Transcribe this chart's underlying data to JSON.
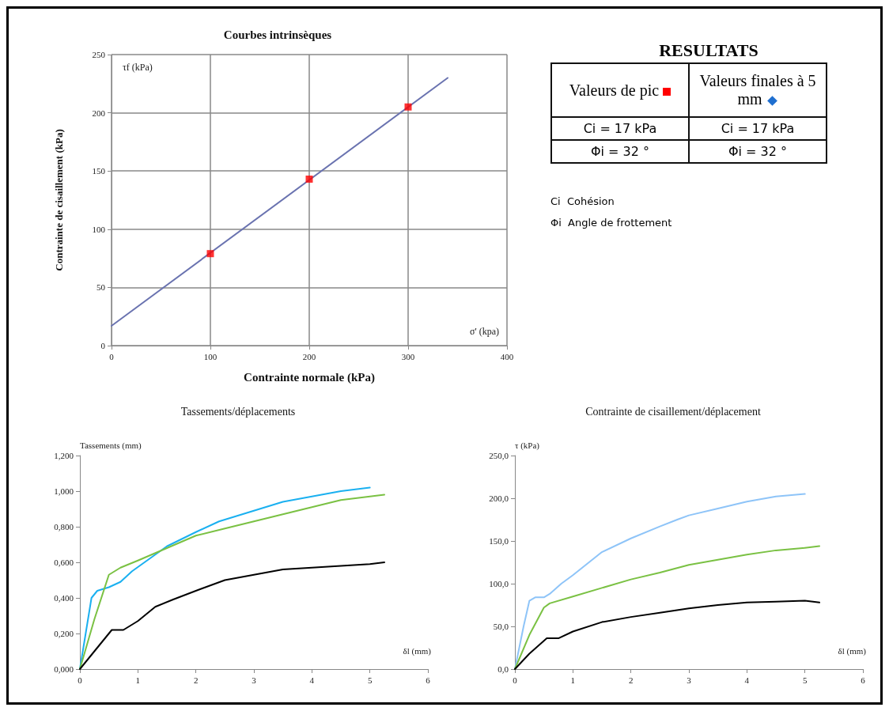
{
  "chart_data": [
    {
      "type": "scatter",
      "title": "Courbes intrinsèques",
      "xlabel": "Contrainte normale (kPa)",
      "ylabel": "Contrainte de cisaillement (kPa)",
      "annotations": [
        "τf (kPa)",
        "σ' (kpa)"
      ],
      "xlim": [
        0,
        400
      ],
      "xticks": [
        0,
        100,
        200,
        300,
        400
      ],
      "ylim": [
        0,
        250
      ],
      "yticks": [
        0,
        50,
        100,
        150,
        200,
        250
      ],
      "grid": true,
      "series": [
        {
          "type": "line",
          "color": "#6a73b0",
          "marker": "none",
          "x": [
            0,
            340
          ],
          "values": [
            17,
            230
          ]
        },
        {
          "type": "scatter",
          "color": "#ff0000",
          "marker": "square",
          "x": [
            100,
            200,
            300
          ],
          "values": [
            79,
            143,
            205
          ]
        }
      ]
    },
    {
      "type": "other",
      "title": "RESULTATS",
      "annotations": [
        "Valeurs de pic",
        "Valeurs finales à 5 mm",
        "Ci = 17 kPa",
        "Ci = 17 kPa",
        "Φi = 32 °",
        "Φi = 32 °",
        "Ci  Cohésion",
        "Φi  Angle de frottement"
      ]
    },
    {
      "type": "line",
      "title": "Tassements/déplacements",
      "xlabel": "δl (mm)",
      "ylabel": "Tassements (mm)",
      "xlim": [
        0,
        6
      ],
      "xticks": [
        0,
        1,
        2,
        3,
        4,
        5,
        6
      ],
      "ylim": [
        0,
        1.2
      ],
      "yticks": [
        {
          "value": 0,
          "label": "0,000"
        },
        {
          "value": 0.2,
          "label": "0,200"
        },
        {
          "value": 0.4,
          "label": "0,400"
        },
        {
          "value": 0.6,
          "label": "0,600"
        },
        {
          "value": 0.8,
          "label": "0,800"
        },
        {
          "value": 1,
          "label": "1,000"
        },
        {
          "value": 1.2,
          "label": "1,200"
        }
      ],
      "series": [
        {
          "color": "#1ab0f0",
          "x": [
            0,
            0.1,
            0.2,
            0.3,
            0.5,
            0.7,
            0.9,
            1.2,
            1.5,
            2,
            2.4,
            3,
            3.5,
            4,
            4.5,
            5
          ],
          "values": [
            0,
            0.2,
            0.4,
            0.44,
            0.46,
            0.49,
            0.55,
            0.62,
            0.69,
            0.77,
            0.83,
            0.89,
            0.94,
            0.97,
            1.0,
            1.02
          ]
        },
        {
          "color": "#7ac143",
          "x": [
            0,
            0.25,
            0.5,
            0.7,
            1,
            1.5,
            2,
            2.5,
            3,
            3.5,
            4,
            4.5,
            5,
            5.25
          ],
          "values": [
            0,
            0.28,
            0.53,
            0.57,
            0.61,
            0.68,
            0.75,
            0.79,
            0.83,
            0.87,
            0.91,
            0.95,
            0.97,
            0.98
          ]
        },
        {
          "color": "#000000",
          "x": [
            0,
            0.25,
            0.55,
            0.75,
            1,
            1.3,
            1.6,
            2,
            2.5,
            3,
            3.5,
            4,
            4.5,
            5,
            5.25
          ],
          "values": [
            0,
            0.1,
            0.22,
            0.22,
            0.27,
            0.35,
            0.39,
            0.44,
            0.5,
            0.53,
            0.56,
            0.57,
            0.58,
            0.59,
            0.6
          ]
        }
      ]
    },
    {
      "type": "line",
      "title": "Contrainte de cisaillement/déplacement",
      "xlabel": "δl (mm)",
      "ylabel": "τ (kPa)",
      "xlim": [
        0,
        6
      ],
      "xticks": [
        0,
        1,
        2,
        3,
        4,
        5,
        6
      ],
      "ylim": [
        0,
        250
      ],
      "yticks": [
        {
          "value": 0,
          "label": "0,0"
        },
        {
          "value": 50,
          "label": "50,0"
        },
        {
          "value": 100,
          "label": "100,0"
        },
        {
          "value": 150,
          "label": "150,0"
        },
        {
          "value": 200,
          "label": "200,0"
        },
        {
          "value": 250,
          "label": "250,0"
        }
      ],
      "series": [
        {
          "color": "#8ec4f8",
          "x": [
            0,
            0.15,
            0.25,
            0.35,
            0.5,
            0.6,
            0.8,
            1,
            1.5,
            2,
            2.5,
            2.8,
            3,
            3.5,
            4,
            4.5,
            5
          ],
          "values": [
            0,
            50,
            80,
            84,
            84,
            88,
            100,
            110,
            137,
            153,
            167,
            175,
            180,
            188,
            196,
            202,
            205
          ]
        },
        {
          "color": "#7ac143",
          "x": [
            0,
            0.25,
            0.5,
            0.6,
            1,
            1.5,
            2,
            2.5,
            3,
            3.5,
            4,
            4.5,
            5,
            5.25
          ],
          "values": [
            0,
            40,
            72,
            77,
            85,
            95,
            105,
            113,
            122,
            128,
            134,
            139,
            142,
            144
          ]
        },
        {
          "color": "#000000",
          "x": [
            0,
            0.25,
            0.55,
            0.75,
            1,
            1.5,
            2,
            2.5,
            3,
            3.5,
            4,
            4.5,
            5,
            5.25
          ],
          "values": [
            0,
            18,
            36,
            36,
            44,
            55,
            61,
            66,
            71,
            75,
            78,
            79,
            80,
            78
          ]
        }
      ]
    }
  ]
}
